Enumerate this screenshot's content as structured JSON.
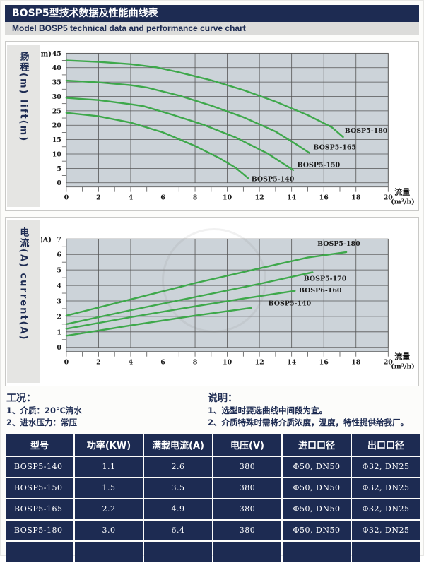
{
  "header": {
    "title_cn": "BOSP5型技术数据及性能曲线表",
    "title_en": "Model BOSP5 technical data and performance curve chart"
  },
  "colors": {
    "navy": "#1d2b52",
    "curve_green": "#3ea84b",
    "plot_bg": "#ccd3d9",
    "grid": "#555555",
    "panel_border": "#c9c9c7",
    "strip_bg": "#e5e5e3",
    "subtitle_bg": "#dcdcda",
    "table_border": "#ffffff"
  },
  "chart_data": [
    {
      "type": "line",
      "strip_label": "扬程(m) lift(m)",
      "corner_label": "(m)",
      "xlabel": "流量",
      "xlabel_unit": "(m³/h)",
      "xlim": [
        0,
        20
      ],
      "ylim": [
        0,
        45
      ],
      "x_major_ticks": [
        0,
        2,
        4,
        6,
        8,
        10,
        12,
        14,
        16,
        18,
        20
      ],
      "x_minor_ticks": [
        1,
        3,
        5,
        7,
        9,
        11,
        13,
        15,
        17,
        19
      ],
      "y_major_ticks": [
        0,
        5,
        10,
        15,
        20,
        25,
        30,
        35,
        40,
        45
      ],
      "y_minor_ticks": [
        2.5,
        7.5,
        12.5,
        17.5,
        22.5,
        27.5,
        32.5,
        37.5,
        42.5
      ],
      "grid": true,
      "series": [
        {
          "name": "BOSP5-180",
          "points": [
            [
              0,
              42.5
            ],
            [
              2,
              42
            ],
            [
              4,
              41.2
            ],
            [
              5.6,
              40.1
            ],
            [
              7,
              38.4
            ],
            [
              9,
              35.6
            ],
            [
              11,
              32.2
            ],
            [
              13,
              28.2
            ],
            [
              15,
              23.5
            ],
            [
              16.5,
              19.3
            ],
            [
              17.2,
              15.9
            ]
          ],
          "label_pos": [
            17.3,
            17.4
          ]
        },
        {
          "name": "BOSP5-165",
          "points": [
            [
              0,
              35.5
            ],
            [
              2,
              34.9
            ],
            [
              4,
              33.9
            ],
            [
              5,
              33.1
            ],
            [
              7,
              30.3
            ],
            [
              9,
              26.8
            ],
            [
              11,
              22.8
            ],
            [
              13,
              17.8
            ],
            [
              14.3,
              13.3
            ],
            [
              15.1,
              10.4
            ]
          ],
          "label_pos": [
            15.35,
            11.6
          ]
        },
        {
          "name": "BOSP5-150",
          "points": [
            [
              0,
              29.5
            ],
            [
              2,
              28.7
            ],
            [
              4,
              27.3
            ],
            [
              4.8,
              26.6
            ],
            [
              6.5,
              23.8
            ],
            [
              8.5,
              20.2
            ],
            [
              10.5,
              15.8
            ],
            [
              12.5,
              10.2
            ],
            [
              14.1,
              4.4
            ]
          ],
          "label_pos": [
            14.35,
            5.4
          ]
        },
        {
          "name": "BOSP5-140",
          "points": [
            [
              0,
              24.3
            ],
            [
              2,
              23.1
            ],
            [
              4,
              20.9
            ],
            [
              6,
              17.5
            ],
            [
              8,
              12.8
            ],
            [
              9.5,
              8.6
            ],
            [
              10.5,
              5.3
            ],
            [
              11.3,
              1.6
            ]
          ],
          "label_pos": [
            11.5,
            0.5
          ]
        }
      ]
    },
    {
      "type": "line",
      "strip_label": "电流(A) current(A)",
      "corner_label": "(A)",
      "xlabel": "流量",
      "xlabel_unit": "(m³/h)",
      "xlim": [
        0,
        20
      ],
      "ylim": [
        0,
        7
      ],
      "x_major_ticks": [
        0,
        2,
        4,
        6,
        8,
        10,
        12,
        14,
        16,
        18,
        20
      ],
      "x_minor_ticks": [
        1,
        3,
        5,
        7,
        9,
        11,
        13,
        15,
        17,
        19
      ],
      "y_major_ticks": [
        0,
        1,
        2,
        3,
        4,
        5,
        6,
        7
      ],
      "y_minor_ticks": [
        0.5,
        1.5,
        2.5,
        3.5,
        4.5,
        5.5,
        6.5
      ],
      "grid": true,
      "series": [
        {
          "name": "BOSP5-180",
          "points": [
            [
              0,
              2.05
            ],
            [
              4,
              3.1
            ],
            [
              8,
              4.15
            ],
            [
              12,
              5.1
            ],
            [
              15,
              5.8
            ],
            [
              17.4,
              6.15
            ]
          ],
          "label_pos": [
            15.6,
            6.55
          ]
        },
        {
          "name": "BOSP5-170",
          "points": [
            [
              0,
              1.5
            ],
            [
              4,
              2.4
            ],
            [
              8,
              3.25
            ],
            [
              12,
              4.1
            ],
            [
              15.3,
              4.85
            ]
          ],
          "label_pos": [
            14.75,
            4.3
          ]
        },
        {
          "name": "BOSP6-160",
          "points": [
            [
              0,
              1.2
            ],
            [
              4,
              1.95
            ],
            [
              8,
              2.65
            ],
            [
              11,
              3.15
            ],
            [
              14.2,
              3.65
            ]
          ],
          "label_pos": [
            14.45,
            3.55
          ]
        },
        {
          "name": "BOSP5-140",
          "points": [
            [
              0,
              0.75
            ],
            [
              4,
              1.42
            ],
            [
              8,
              2.05
            ],
            [
              11.5,
              2.55
            ]
          ],
          "label_pos": [
            12.55,
            2.7
          ]
        }
      ]
    }
  ],
  "conditions": {
    "heading": "工况：",
    "items": [
      "1、介质：20℃清水",
      "2、进水压力：常压"
    ]
  },
  "notes": {
    "heading": "说明：",
    "items": [
      "1、选型时要选曲线中间段为宜。",
      "2、介质特殊时需将介质浓度，温度，特性提供给我厂。"
    ]
  },
  "table": {
    "columns": [
      "型号",
      "功率(KW)",
      "满载电流(A)",
      "电压(V)",
      "进口口径",
      "出口口径"
    ],
    "rows": [
      [
        "BOSP5-140",
        "1.1",
        "2.6",
        "380",
        "Φ50, DN50",
        "Φ32, DN25"
      ],
      [
        "BOSP5-150",
        "1.5",
        "3.5",
        "380",
        "Φ50, DN50",
        "Φ32, DN25"
      ],
      [
        "BOSP5-165",
        "2.2",
        "4.9",
        "380",
        "Φ50, DN50",
        "Φ32, DN25"
      ],
      [
        "BOSP5-180",
        "3.0",
        "6.4",
        "380",
        "Φ50, DN50",
        "Φ32, DN25"
      ],
      [
        "",
        "",
        "",
        "",
        "",
        ""
      ]
    ]
  }
}
